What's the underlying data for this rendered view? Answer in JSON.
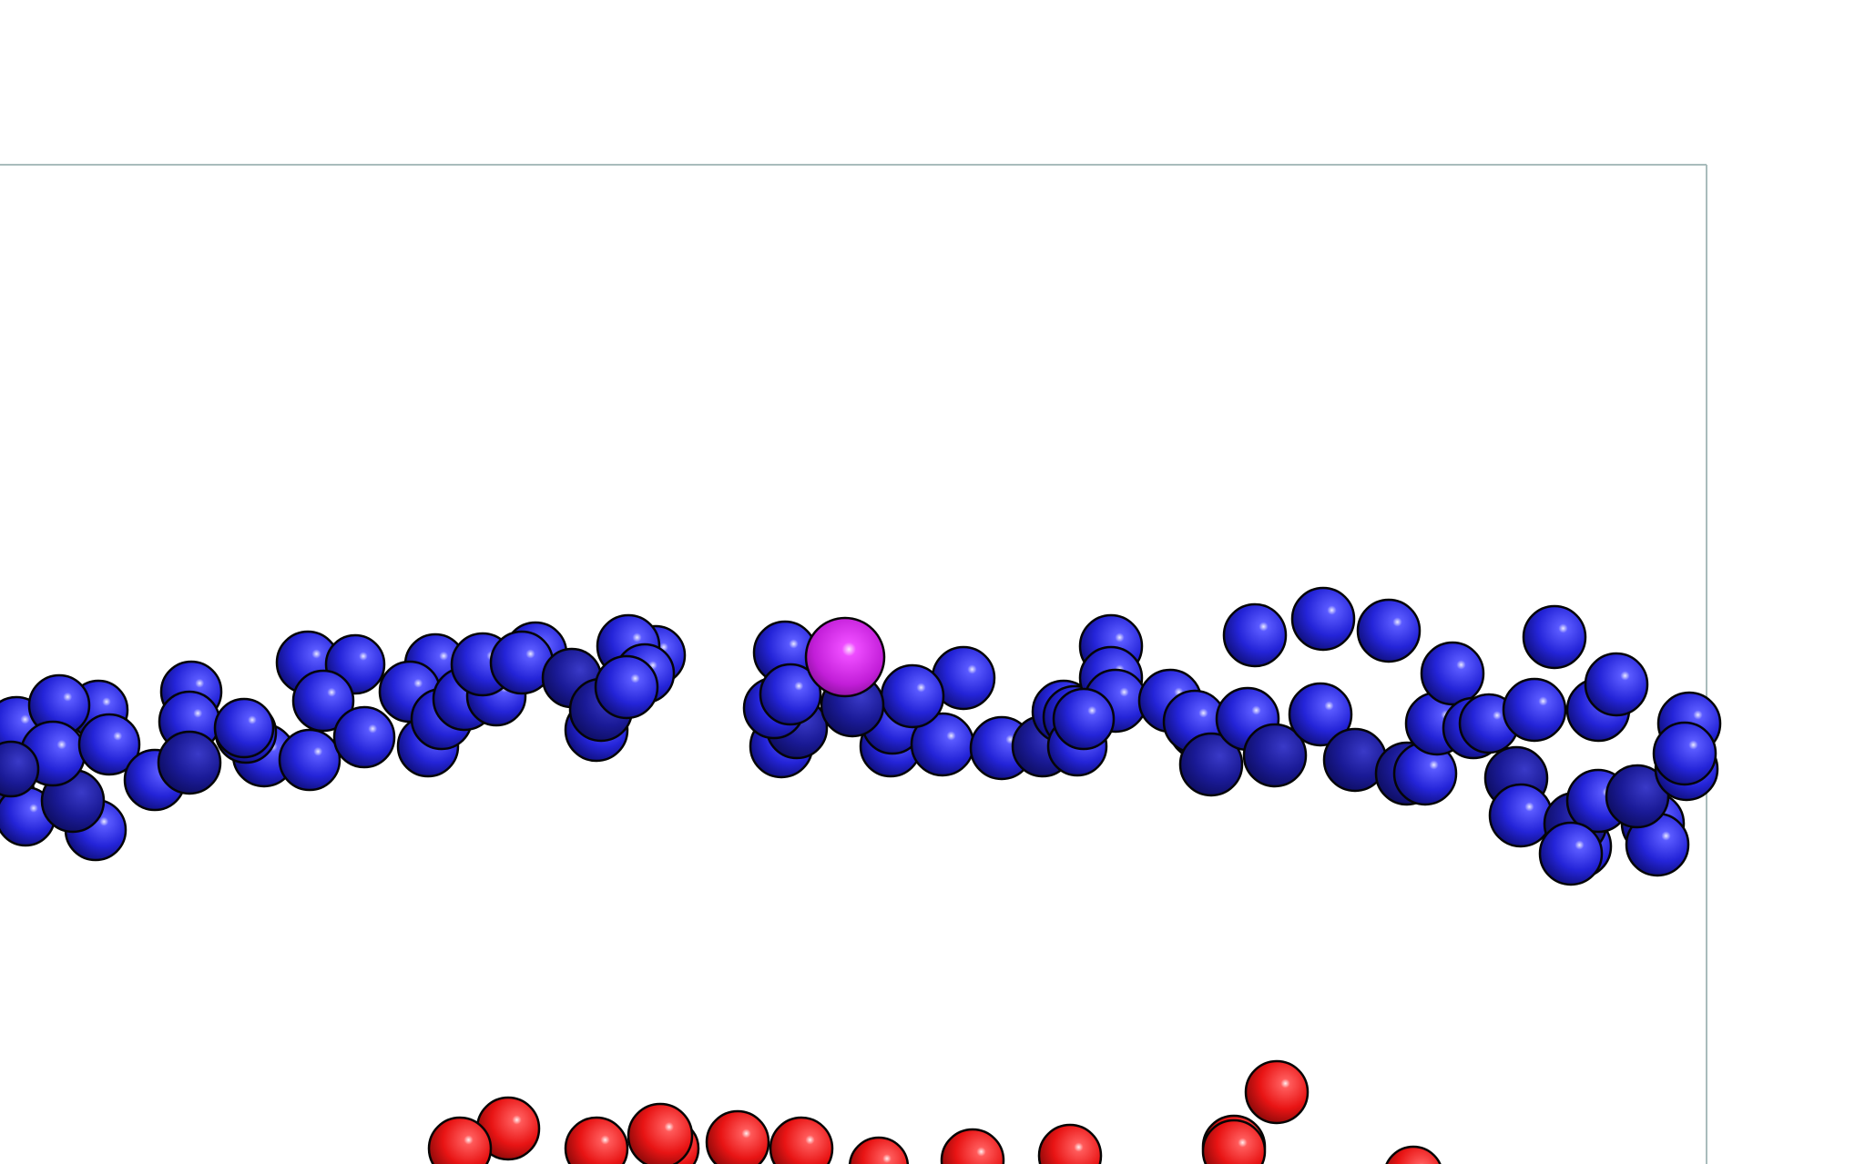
{
  "scene": {
    "colors": {
      "background": "#ffffff",
      "box_line": "#a9bcbc",
      "blue_atom": "#2424d8",
      "blue_shadow": "#141488",
      "red_atom": "#e81414",
      "magenta_atom": "#d226e6",
      "outline": "#050505"
    }
  }
}
